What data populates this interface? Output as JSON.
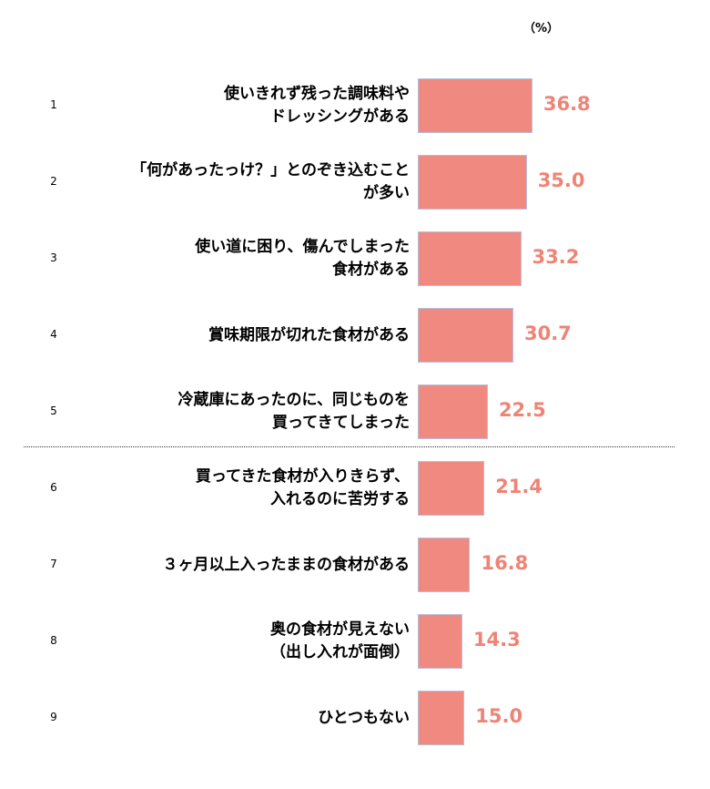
{
  "chart_data": {
    "type": "bar",
    "orientation": "horizontal",
    "unit": "（%）",
    "xlim": [
      0,
      60
    ],
    "ranks": [
      "1",
      "2",
      "3",
      "4",
      "5",
      "6",
      "7",
      "8",
      "9"
    ],
    "categories": [
      "使いきれず残った調味料や\nドレッシングがある",
      "「何があったっけ？」とのぞき込むこと\nが多い",
      "使い道に困り、傷んでしまった\n食材がある",
      "賞味期限が切れた食材がある",
      "冷蔵庫にあったのに、同じものを\n買ってきてしまった",
      "買ってきた食材が入りきらず、\n入れるのに苦労する",
      "３ヶ月以上入ったままの食材がある",
      "奥の食材が見えない\n（出し入れが面倒）",
      "ひとつもない"
    ],
    "values": [
      36.8,
      35.0,
      33.2,
      30.7,
      22.5,
      21.4,
      16.8,
      14.3,
      15.0
    ],
    "value_labels": [
      "36.8",
      "35.0",
      "33.2",
      "30.7",
      "22.5",
      "21.4",
      "16.8",
      "14.3",
      "15.0"
    ],
    "bar_color": "#f08a80",
    "label_color": "#ee8476"
  }
}
